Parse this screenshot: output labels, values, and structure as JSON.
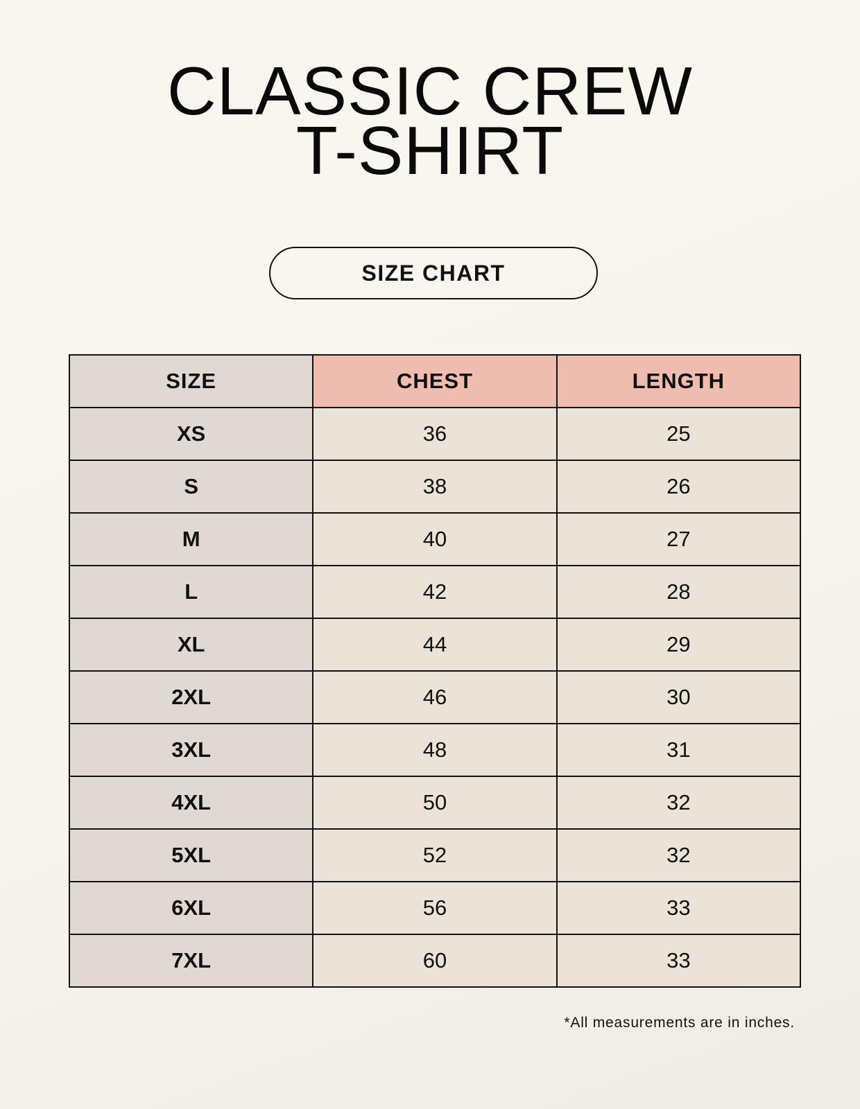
{
  "title_line1": "CLASSIC CREW",
  "title_line2": "T-SHIRT",
  "badge": "SIZE CHART",
  "table": {
    "headers": [
      "SIZE",
      "CHEST",
      "LENGTH"
    ],
    "rows": [
      [
        "XS",
        "36",
        "25"
      ],
      [
        "S",
        "38",
        "26"
      ],
      [
        "M",
        "40",
        "27"
      ],
      [
        "L",
        "42",
        "28"
      ],
      [
        "XL",
        "44",
        "29"
      ],
      [
        "2XL",
        "46",
        "30"
      ],
      [
        "3XL",
        "48",
        "31"
      ],
      [
        "4XL",
        "50",
        "32"
      ],
      [
        "5XL",
        "52",
        "32"
      ],
      [
        "6XL",
        "56",
        "33"
      ],
      [
        "7XL",
        "60",
        "33"
      ]
    ]
  },
  "note": "*All measurements are in inches.",
  "colors": {
    "size_column": "#e0d8d3",
    "header_accent": "#efbdb0",
    "cell": "#ebe3d8",
    "background": "#f8f5ef"
  }
}
